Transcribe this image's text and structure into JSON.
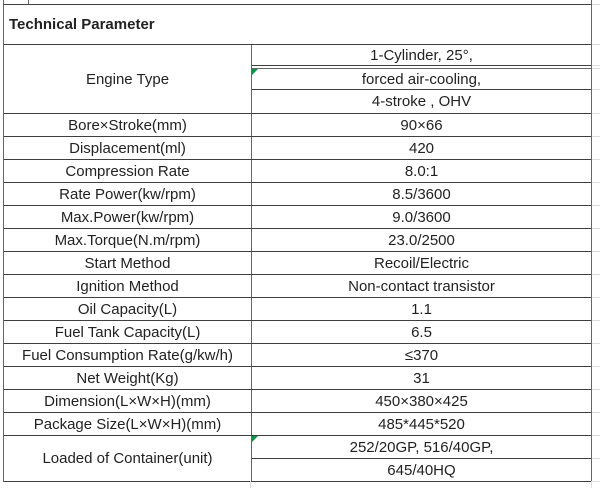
{
  "colors": {
    "border": "#3f3f3f",
    "vborder": "#676767",
    "light_grid": "#dcdcdc",
    "flag_green": "#0b9444",
    "text": "#222222",
    "background": "#ffffff"
  },
  "table": {
    "title": "Technical Parameter",
    "engine": {
      "label": "Engine Type",
      "values": [
        "1-Cylinder, 25°,",
        "forced air-cooling,",
        "4-stroke , OHV"
      ]
    },
    "rows": [
      {
        "label": "Bore×Stroke(mm)",
        "value": "90×66"
      },
      {
        "label": "Displacement(ml)",
        "value": "420"
      },
      {
        "label": "Compression Rate",
        "value": "8.0:1"
      },
      {
        "label": "Rate Power(kw/rpm)",
        "value": "8.5/3600"
      },
      {
        "label": "Max.Power(kw/rpm)",
        "value": "9.0/3600"
      },
      {
        "label": "Max.Torque(N.m/rpm)",
        "value": "23.0/2500"
      },
      {
        "label": "Start Method",
        "value": "Recoil/Electric"
      },
      {
        "label": "Ignition Method",
        "value": "Non-contact transistor"
      },
      {
        "label": "Oil Capacity(L)",
        "value": "1.1"
      },
      {
        "label": "Fuel Tank Capacity(L)",
        "value": "6.5"
      },
      {
        "label": "Fuel Consumption Rate(g/kw/h)",
        "value": "≤370"
      },
      {
        "label": "Net Weight(Kg)",
        "value": "31"
      },
      {
        "label": "Dimension(L×W×H)(mm)",
        "value": "450×380×425"
      },
      {
        "label": "Package Size(L×W×H)(mm)",
        "value": "485*445*520"
      }
    ],
    "container": {
      "label": "Loaded of Container(unit)",
      "values": [
        "252/20GP, 516/40GP,",
        "645/40HQ"
      ]
    }
  }
}
